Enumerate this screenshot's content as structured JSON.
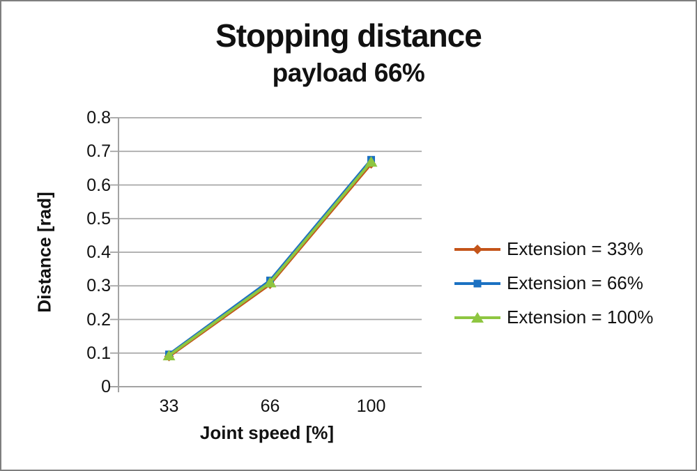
{
  "chart_data": {
    "type": "line",
    "title": "Stopping distance",
    "subtitle": "payload 66%",
    "xlabel": "Joint speed [%]",
    "ylabel": "Distance [rad]",
    "categories": [
      "33",
      "66",
      "100"
    ],
    "series": [
      {
        "name": "Extension = 33%",
        "marker": "diamond",
        "color": "#C45419",
        "values": [
          0.09,
          0.305,
          0.663
        ]
      },
      {
        "name": "Extension = 66%",
        "marker": "square",
        "color": "#1B71C2",
        "values": [
          0.096,
          0.316,
          0.675
        ]
      },
      {
        "name": "Extension = 100%",
        "marker": "triangle",
        "color": "#8EC641",
        "values": [
          0.093,
          0.31,
          0.669
        ]
      }
    ],
    "ylim": [
      0,
      0.8
    ],
    "y_ticks": [
      0,
      0.1,
      0.2,
      0.3,
      0.4,
      0.5,
      0.6,
      0.7,
      0.8
    ],
    "grid": true,
    "legend_position": "right",
    "axis_color": "#a3a3a3",
    "grid_color": "#a8a8a8",
    "text_color": "#111111",
    "frame_border_color": "#7f7f7f"
  }
}
